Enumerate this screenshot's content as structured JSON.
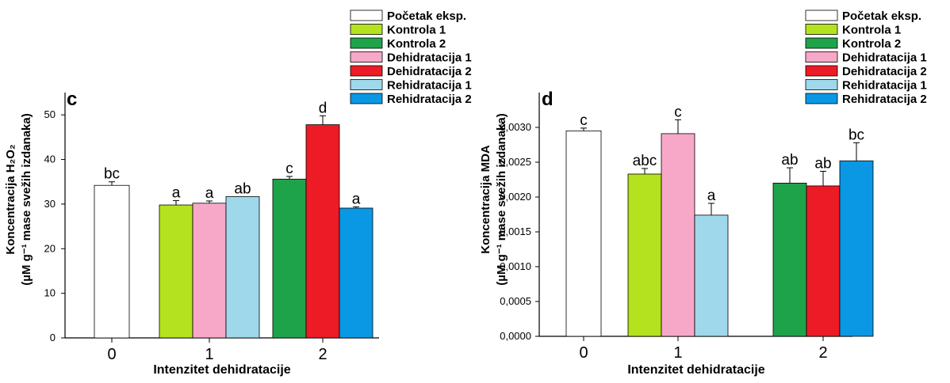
{
  "chart_data": [
    {
      "type": "bar",
      "panel_label": "c",
      "xlabel": "Intenzitet dehidratacije",
      "ylabel_line1": "Koncentracija H₂O₂",
      "ylabel_line2": "(µM g⁻¹ mase svežih izdanaka)",
      "ylim": [
        0,
        55
      ],
      "yticks": [
        "0",
        "10",
        "20",
        "30",
        "40",
        "50"
      ],
      "groups": [
        {
          "label": "0",
          "bars": [
            {
              "series": "Početak eksp.",
              "value": 34.2,
              "error": 0.8,
              "letter": "bc"
            }
          ]
        },
        {
          "label": "1",
          "bars": [
            {
              "series": "Kontrola 1",
              "value": 29.8,
              "error": 1.0,
              "letter": "a"
            },
            {
              "series": "Dehidratacija 1",
              "value": 30.2,
              "error": 0.5,
              "letter": "a"
            },
            {
              "series": "Rehidratacija 1",
              "value": 31.7,
              "error": 0.0,
              "letter": "ab"
            }
          ]
        },
        {
          "label": "2",
          "bars": [
            {
              "series": "Kontrola 2",
              "value": 35.6,
              "error": 0.6,
              "letter": "c"
            },
            {
              "series": "Dehidratacija 2",
              "value": 47.8,
              "error": 2.0,
              "letter": "d"
            },
            {
              "series": "Rehidratacija 2",
              "value": 29.1,
              "error": 0.3,
              "letter": "a"
            }
          ]
        }
      ]
    },
    {
      "type": "bar",
      "panel_label": "d",
      "xlabel": "Intenzitet dehidratacije",
      "ylabel_line1": "Koncentracija MDA",
      "ylabel_line2": "(µM g⁻¹ mase svežih izdanaka)",
      "ylim": [
        0,
        0.0035
      ],
      "yticks": [
        "0,0000",
        "0,0005",
        "0,0010",
        "0,0015",
        "0,0020",
        "0,0025",
        "0,0030"
      ],
      "groups": [
        {
          "label": "0",
          "bars": [
            {
              "series": "Početak eksp.",
              "value": 0.00295,
              "error": 4e-05,
              "letter": "c"
            }
          ]
        },
        {
          "label": "1",
          "bars": [
            {
              "series": "Kontrola 1",
              "value": 0.00233,
              "error": 8e-05,
              "letter": "abc"
            },
            {
              "series": "Dehidratacija 1",
              "value": 0.00291,
              "error": 0.0002,
              "letter": "c"
            },
            {
              "series": "Rehidratacija 1",
              "value": 0.00174,
              "error": 0.00017,
              "letter": "a"
            }
          ]
        },
        {
          "label": "2",
          "bars": [
            {
              "series": "Kontrola 2",
              "value": 0.0022,
              "error": 0.00022,
              "letter": "ab"
            },
            {
              "series": "Dehidratacija 2",
              "value": 0.00216,
              "error": 0.00021,
              "letter": "ab"
            },
            {
              "series": "Rehidratacija 2",
              "value": 0.00252,
              "error": 0.00026,
              "letter": "bc"
            }
          ]
        }
      ]
    }
  ],
  "legend": [
    {
      "name": "Početak eksp.",
      "color": "#ffffff"
    },
    {
      "name": "Kontrola 1",
      "color": "#b5e21f"
    },
    {
      "name": "Kontrola 2",
      "color": "#1fa34a"
    },
    {
      "name": "Dehidratacija 1",
      "color": "#f7a8c8"
    },
    {
      "name": "Dehidratacija 2",
      "color": "#ec1b25"
    },
    {
      "name": "Rehidratacija 1",
      "color": "#9ed8ea"
    },
    {
      "name": "Rehidratacija 2",
      "color": "#0a98e4"
    }
  ]
}
